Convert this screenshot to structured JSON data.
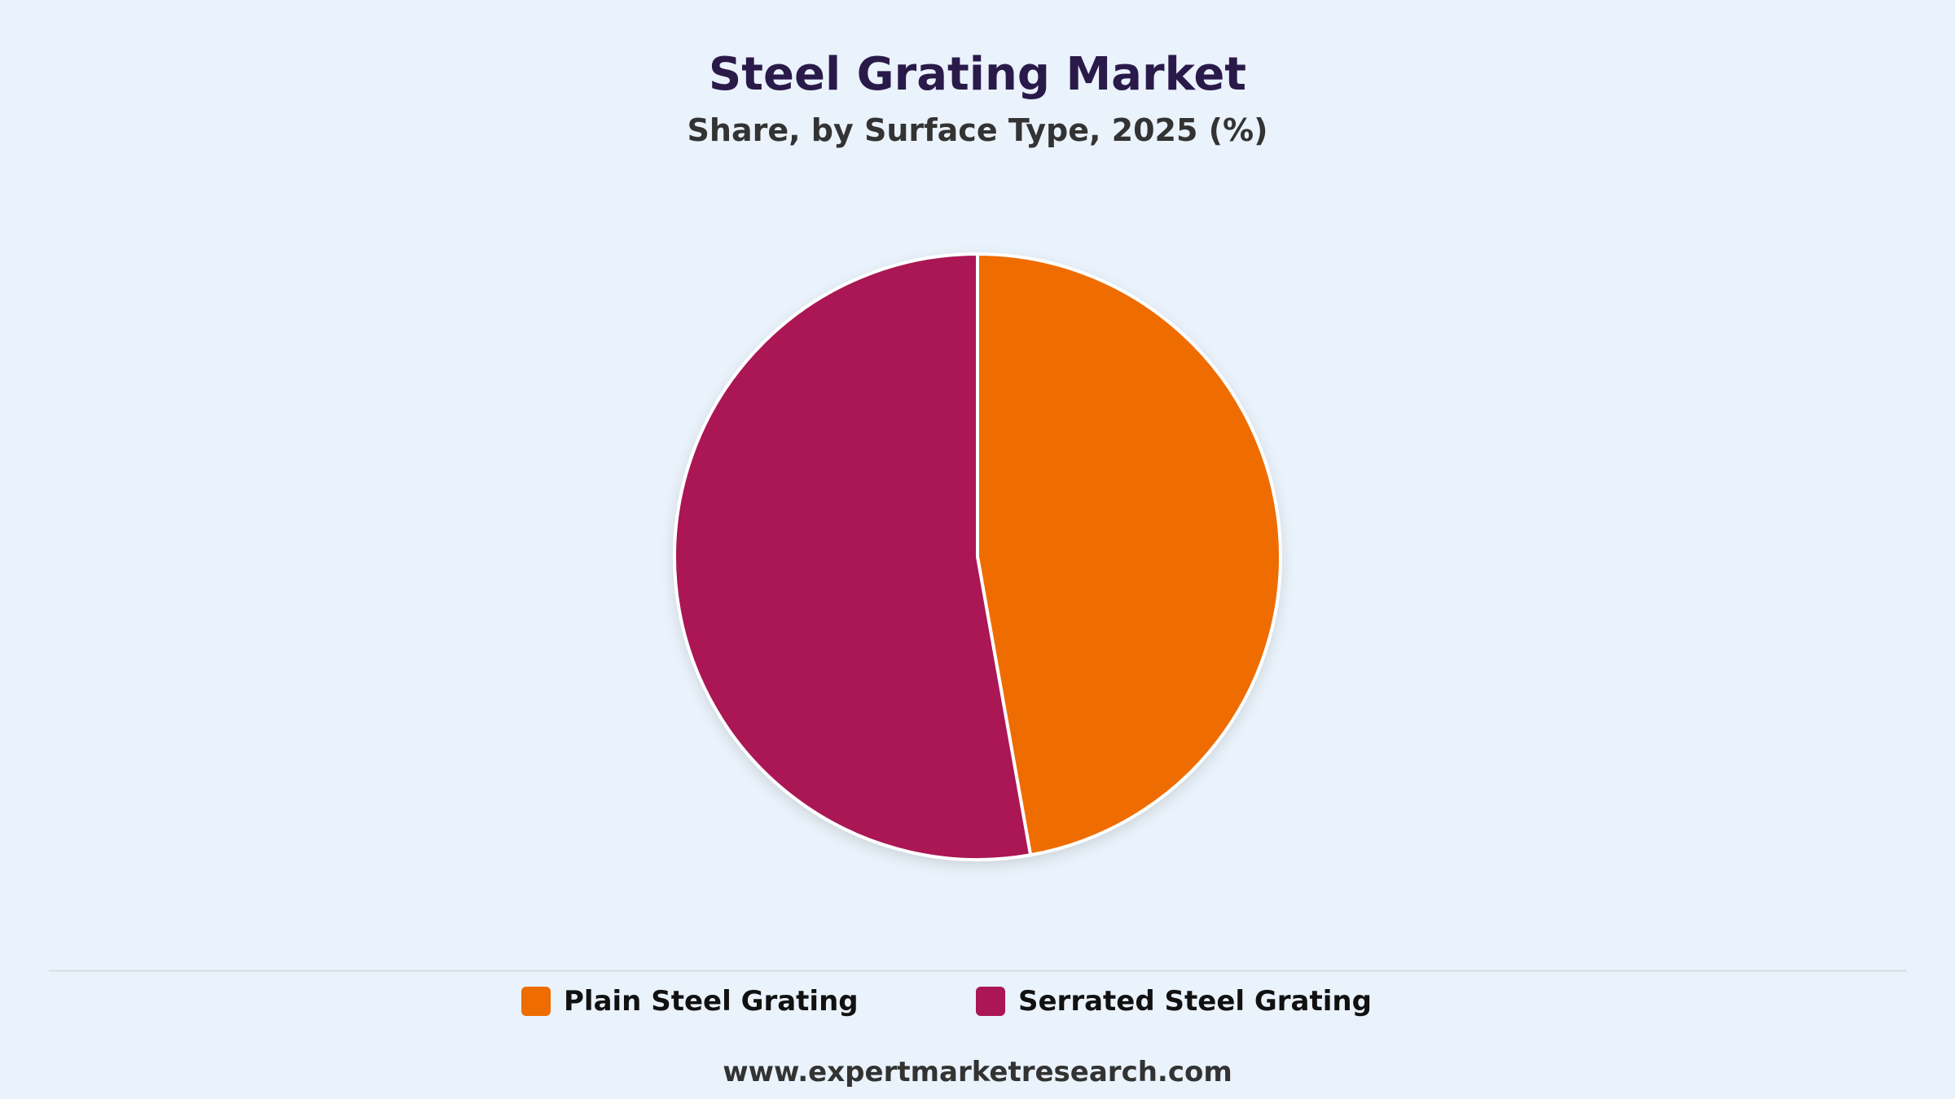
{
  "chart_data": {
    "type": "pie",
    "title": "Steel Grating Market",
    "subtitle": "Share, by Surface Type, 2025 (%)",
    "categories": [
      "Plain Steel Grating",
      "Serrated Steel Grating"
    ],
    "values": [
      47.2,
      52.8
    ],
    "colors": [
      "#ef6c00",
      "#ab1654"
    ],
    "start_angle": "12 o'clock",
    "direction": "clockwise",
    "legend_position": "bottom"
  },
  "footer": {
    "source": "www.expertmarketresearch.com"
  }
}
